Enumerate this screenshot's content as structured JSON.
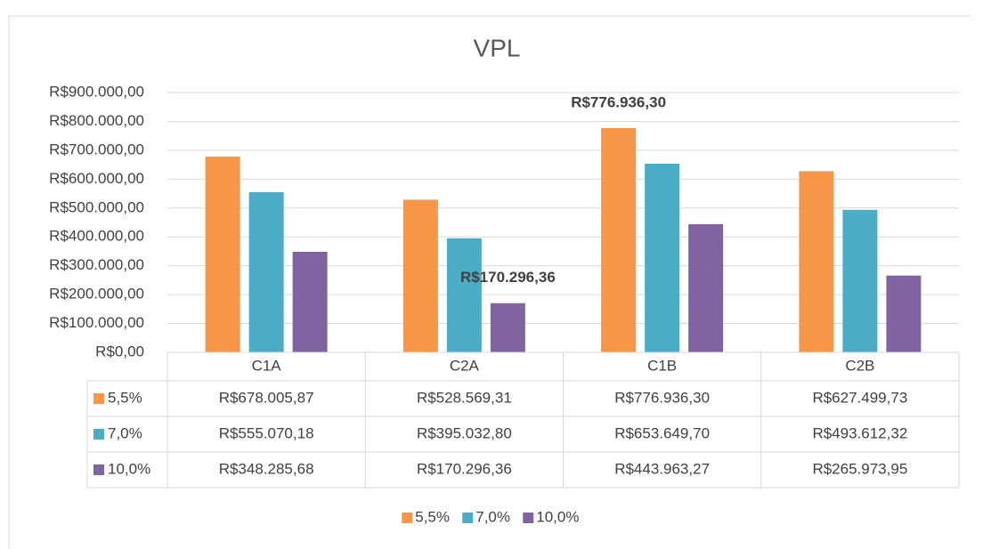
{
  "chart_data": {
    "type": "bar",
    "title": "VPL",
    "categories": [
      "C1A",
      "C2A",
      "C1B",
      "C2B"
    ],
    "series": [
      {
        "name": "5,5%",
        "color": "#f79646",
        "values": [
          678005.87,
          528569.31,
          776936.3,
          627499.73
        ],
        "value_labels": [
          "R$678.005,87",
          "R$528.569,31",
          "R$776.936,30",
          "R$627.499,73"
        ]
      },
      {
        "name": "7,0%",
        "color": "#4bacc6",
        "values": [
          555070.18,
          395032.8,
          653649.7,
          493612.32
        ],
        "value_labels": [
          "R$555.070,18",
          "R$395.032,80",
          "R$653.649,70",
          "R$493.612,32"
        ]
      },
      {
        "name": "10,0%",
        "color": "#8064a2",
        "values": [
          348285.68,
          170296.36,
          443963.27,
          265973.95
        ],
        "value_labels": [
          "R$348.285,68",
          "R$170.296,36",
          "R$443.963,27",
          "R$265.973,95"
        ]
      }
    ],
    "data_labels_shown": [
      [
        0,
        2
      ],
      [
        2,
        1
      ]
    ],
    "ylim": [
      0,
      900000
    ],
    "yticks": [
      {
        "value": 0,
        "label": "R$0,00"
      },
      {
        "value": 100000,
        "label": "R$100.000,00"
      },
      {
        "value": 200000,
        "label": "R$200.000,00"
      },
      {
        "value": 300000,
        "label": "R$300.000,00"
      },
      {
        "value": 400000,
        "label": "R$400.000,00"
      },
      {
        "value": 500000,
        "label": "R$500.000,00"
      },
      {
        "value": 600000,
        "label": "R$600.000,00"
      },
      {
        "value": 700000,
        "label": "R$700.000,00"
      },
      {
        "value": 800000,
        "label": "R$800.000,00"
      },
      {
        "value": 900000,
        "label": "R$900.000,00"
      }
    ],
    "grid": true,
    "data_table": true,
    "legend": "bottom"
  }
}
